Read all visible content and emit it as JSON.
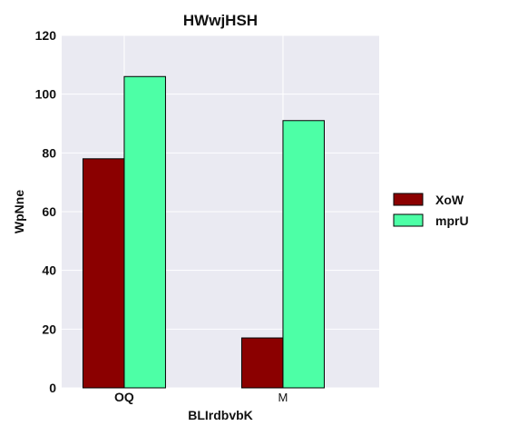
{
  "chart_data": {
    "type": "bar",
    "title": "HWwjHSH",
    "xlabel": "BLIrdbvbK",
    "ylabel": "WpNne",
    "categories": [
      "OQ",
      "M"
    ],
    "series": [
      {
        "name": "XoW",
        "values": [
          78,
          17
        ],
        "color": "#8b0000"
      },
      {
        "name": "mprU",
        "values": [
          106,
          91
        ],
        "color": "#4dffa6"
      }
    ],
    "ylim": [
      0,
      120
    ],
    "yticks": [
      0,
      20,
      40,
      60,
      80,
      100,
      120
    ],
    "grid": true,
    "legend_position": "right",
    "background_color": "#eaeaf2"
  }
}
